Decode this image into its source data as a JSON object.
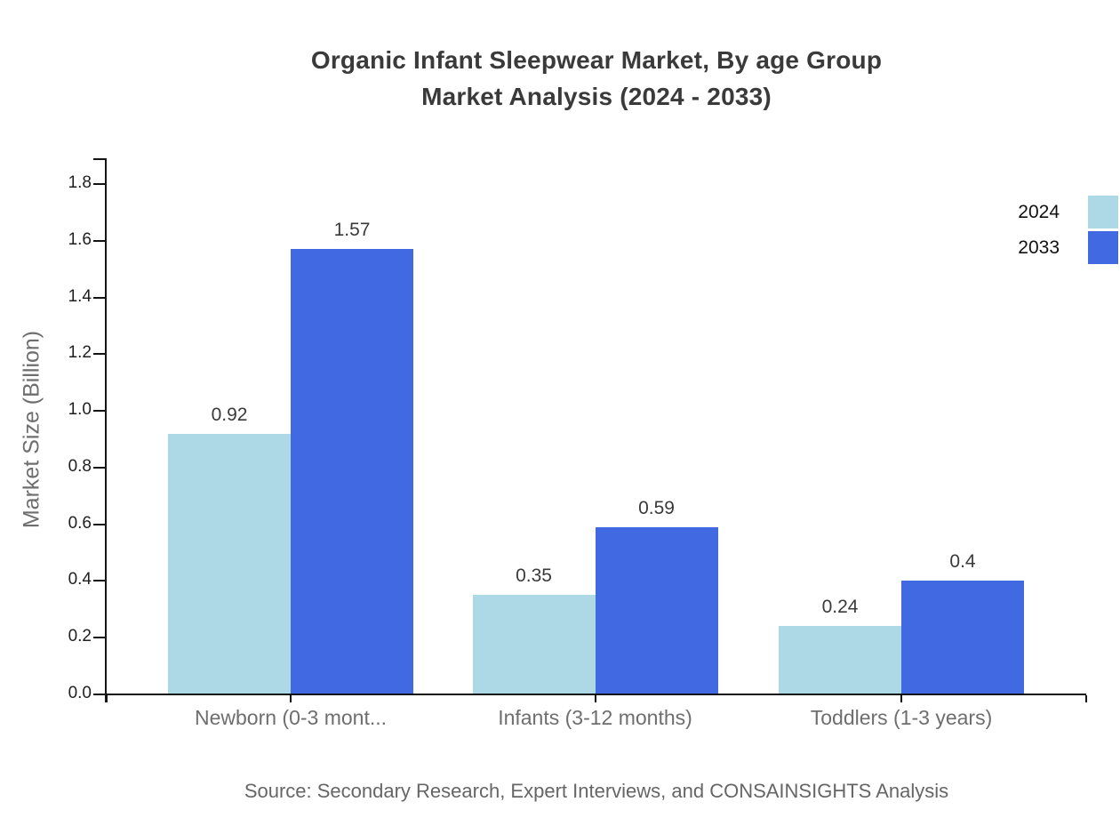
{
  "title": {
    "line1": "Organic Infant Sleepwear Market, By age Group",
    "line2": "Market Analysis (2024 - 2033)"
  },
  "source_note": "Source: Secondary Research, Expert Interviews, and CONSAINSIGHTS Analysis",
  "legend": {
    "position": "top-right",
    "items": [
      {
        "label": "2024",
        "color": "#ADD8E6"
      },
      {
        "label": "2033",
        "color": "#4169E1"
      }
    ]
  },
  "chart_data": {
    "type": "bar",
    "title": "Organic Infant Sleepwear Market, By age Group Market Analysis (2024 - 2033)",
    "categories": [
      "Newborn (0-3 mont...",
      "Infants (3-12 months)",
      "Toddlers (1-3 years)"
    ],
    "series": [
      {
        "name": "2024",
        "color": "#ADD8E6",
        "values": [
          0.92,
          0.35,
          0.24
        ],
        "value_labels": [
          "0.92",
          "0.35",
          "0.24"
        ]
      },
      {
        "name": "2033",
        "color": "#4169E1",
        "values": [
          1.57,
          0.59,
          0.4
        ],
        "value_labels": [
          "1.57",
          "0.59",
          "0.4"
        ]
      }
    ],
    "xlabel": "",
    "ylabel": "Market Size (Billion)",
    "ylim": [
      0,
      1.8
    ],
    "ytick_step": 0.2,
    "ytick_labels": [
      "0.0",
      "0.2",
      "0.4",
      "0.6",
      "0.8",
      "1.0",
      "1.2",
      "1.4",
      "1.6",
      "1.8"
    ],
    "grid": false,
    "legend_position": "top-right"
  }
}
